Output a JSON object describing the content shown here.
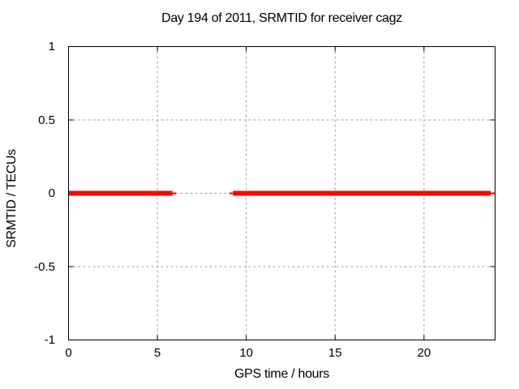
{
  "window": {
    "background": "#ffffff",
    "foreground": "#000000"
  },
  "chart_data": {
    "type": "line",
    "title": "Day 194 of 2011, SRMTID for receiver cagz",
    "xlabel": "GPS time / hours",
    "ylabel": "SRMTID / TECUs",
    "xlim": [
      0,
      24
    ],
    "ylim": [
      -1,
      1
    ],
    "xticks": [
      {
        "value": 0,
        "label": "0"
      },
      {
        "value": 5,
        "label": "5"
      },
      {
        "value": 10,
        "label": "10"
      },
      {
        "value": 15,
        "label": "15"
      },
      {
        "value": 20,
        "label": "20"
      }
    ],
    "yticks": [
      {
        "value": -1,
        "label": "-1"
      },
      {
        "value": -0.5,
        "label": "-0.5"
      },
      {
        "value": 0,
        "label": "0"
      },
      {
        "value": 0.5,
        "label": "0.5"
      },
      {
        "value": 1,
        "label": "1"
      }
    ],
    "grid": true,
    "grid_color": "#a0a0a0",
    "axis_color": "#000000",
    "legend": "none",
    "series": [
      {
        "name": "SRMTID",
        "color": "#ff0000",
        "y_value": 0,
        "segments": [
          {
            "x_start": 0,
            "x_end": 5.85,
            "weight": "thick"
          },
          {
            "x_start": 5.85,
            "x_end": 6.05,
            "weight": "thin"
          },
          {
            "x_start": 9.05,
            "x_end": 9.25,
            "weight": "thin"
          },
          {
            "x_start": 9.25,
            "x_end": 23.75,
            "weight": "thick"
          },
          {
            "x_start": 23.75,
            "x_end": 24,
            "weight": "thin"
          }
        ]
      }
    ]
  }
}
